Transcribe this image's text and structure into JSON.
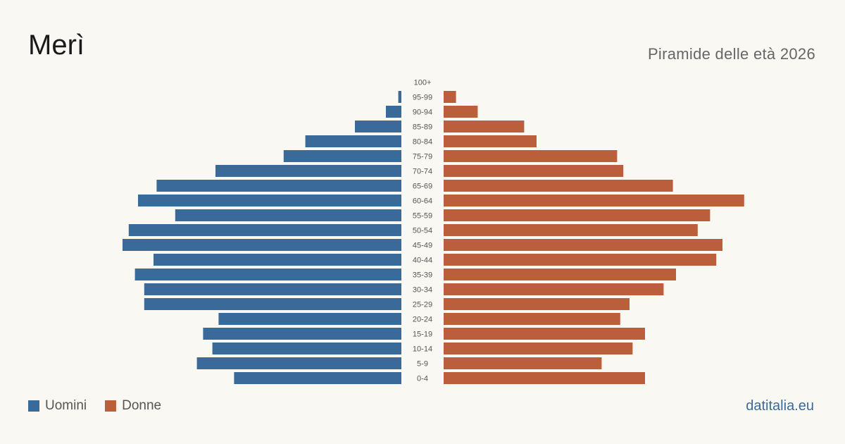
{
  "header": {
    "title": "Merì",
    "subtitle": "Piramide delle età 2026"
  },
  "legend": {
    "men_label": "Uomini",
    "women_label": "Donne"
  },
  "source": "datitalia.eu",
  "colors": {
    "men": "#3a6a9a",
    "women": "#bb5e3c",
    "background": "#faf8f3"
  },
  "chart_data": {
    "type": "bar",
    "orientation": "horizontal-pyramid",
    "categories": [
      "100+",
      "95-99",
      "90-94",
      "85-89",
      "80-84",
      "75-79",
      "70-74",
      "65-69",
      "60-64",
      "55-59",
      "50-54",
      "45-49",
      "40-44",
      "35-39",
      "30-34",
      "25-29",
      "20-24",
      "15-19",
      "10-14",
      "5-9",
      "0-4"
    ],
    "series": [
      {
        "name": "Uomini",
        "values": [
          0,
          1,
          5,
          15,
          31,
          38,
          60,
          79,
          85,
          73,
          88,
          90,
          80,
          86,
          83,
          83,
          59,
          64,
          61,
          66,
          54
        ]
      },
      {
        "name": "Donne",
        "values": [
          0,
          4,
          11,
          26,
          30,
          56,
          58,
          74,
          97,
          86,
          82,
          90,
          88,
          75,
          71,
          60,
          57,
          65,
          61,
          51,
          65
        ]
      }
    ],
    "xlim": [
      0,
      100
    ],
    "grid": false,
    "legend_position": "bottom-left"
  }
}
